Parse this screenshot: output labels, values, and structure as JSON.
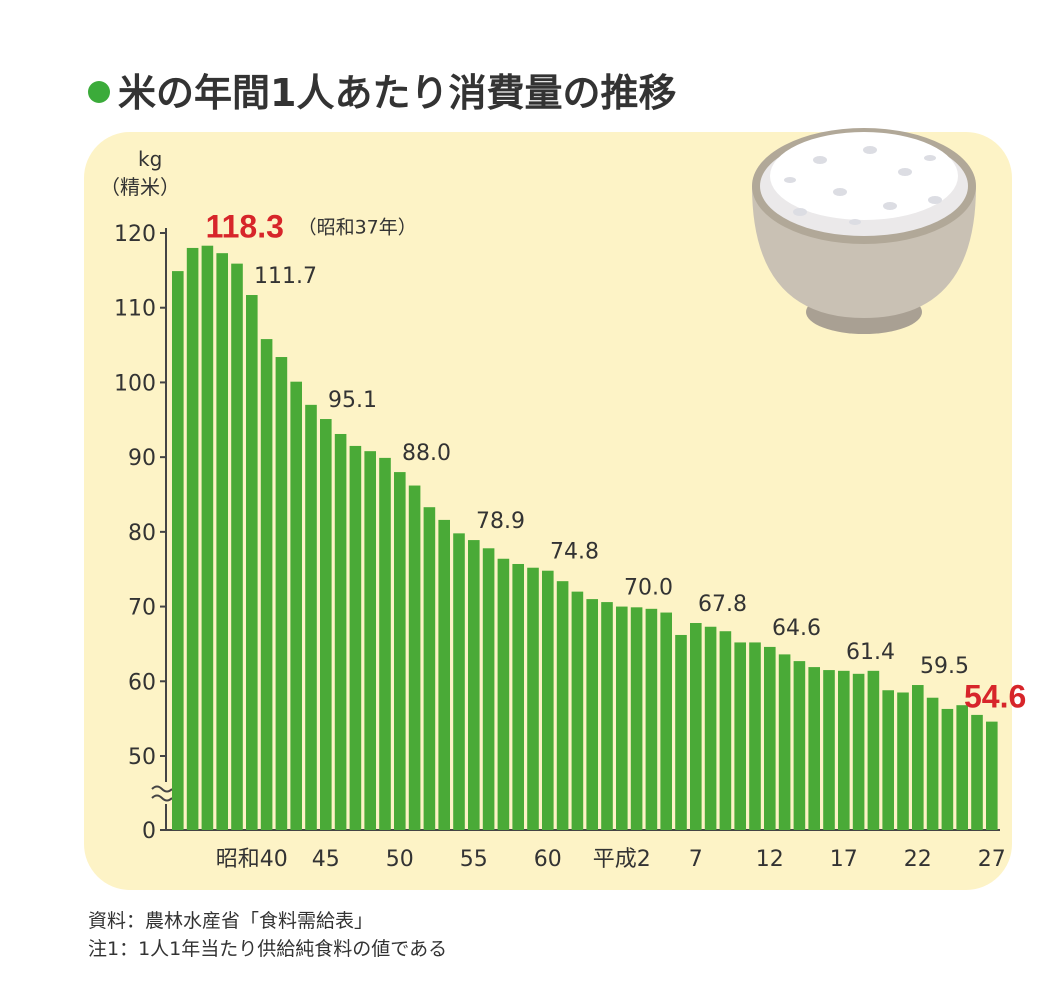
{
  "title": "米の年間1人あたり消費量の推移",
  "source_line1": "資料：農林水産省「食料需給表」",
  "source_line2": "注1：1人1年当たり供給純食料の値である",
  "colors": {
    "bar": "#4aaa37",
    "highlight": "#d7252a",
    "panel": "#fdf3c6",
    "title_dot": "#3bab3a"
  },
  "icons": [
    "rice-bowl-icon",
    "axis-break-icon"
  ],
  "chart_data": {
    "type": "bar",
    "title": "",
    "ylabel_unit": "kg",
    "ylabel_note": "（精米）",
    "ylim": [
      50,
      120
    ],
    "axis_break": true,
    "y_ticks": [
      0,
      50,
      60,
      70,
      80,
      90,
      100,
      110,
      120
    ],
    "x_ticks": [
      {
        "label": "昭和40",
        "year": 1965
      },
      {
        "label": "45",
        "year": 1970
      },
      {
        "label": "50",
        "year": 1975
      },
      {
        "label": "55",
        "year": 1980
      },
      {
        "label": "60",
        "year": 1985
      },
      {
        "label": "平成2",
        "year": 1990
      },
      {
        "label": "7",
        "year": 1995
      },
      {
        "label": "12",
        "year": 2000
      },
      {
        "label": "17",
        "year": 2005
      },
      {
        "label": "22",
        "year": 2010
      },
      {
        "label": "27",
        "year": 2015
      }
    ],
    "x": [
      1960,
      1961,
      1962,
      1963,
      1964,
      1965,
      1966,
      1967,
      1968,
      1969,
      1970,
      1971,
      1972,
      1973,
      1974,
      1975,
      1976,
      1977,
      1978,
      1979,
      1980,
      1981,
      1982,
      1983,
      1984,
      1985,
      1986,
      1987,
      1988,
      1989,
      1990,
      1991,
      1992,
      1993,
      1994,
      1995,
      1996,
      1997,
      1998,
      1999,
      2000,
      2001,
      2002,
      2003,
      2004,
      2005,
      2006,
      2007,
      2008,
      2009,
      2010,
      2011,
      2012,
      2013,
      2014,
      2015
    ],
    "values": [
      114.9,
      118.0,
      118.3,
      117.3,
      115.9,
      111.7,
      105.8,
      103.4,
      100.1,
      97.0,
      95.1,
      93.1,
      91.5,
      90.8,
      89.9,
      88.0,
      86.2,
      83.3,
      81.6,
      79.8,
      78.9,
      77.8,
      76.4,
      75.7,
      75.2,
      74.8,
      73.4,
      72.0,
      71.0,
      70.6,
      70.0,
      69.9,
      69.7,
      69.2,
      66.2,
      67.8,
      67.3,
      66.7,
      65.2,
      65.2,
      64.6,
      63.6,
      62.7,
      61.9,
      61.5,
      61.4,
      61.0,
      61.4,
      58.8,
      58.5,
      59.5,
      57.8,
      56.3,
      56.8,
      55.5,
      54.6
    ],
    "annotations": [
      {
        "year": 1962,
        "text": "118.3",
        "note": "（昭和37年）",
        "highlight": true
      },
      {
        "year": 1965,
        "text": "111.7"
      },
      {
        "year": 1970,
        "text": "95.1"
      },
      {
        "year": 1975,
        "text": "88.0"
      },
      {
        "year": 1980,
        "text": "78.9"
      },
      {
        "year": 1985,
        "text": "74.8"
      },
      {
        "year": 1990,
        "text": "70.0"
      },
      {
        "year": 1995,
        "text": "67.8"
      },
      {
        "year": 2000,
        "text": "64.6"
      },
      {
        "year": 2005,
        "text": "61.4"
      },
      {
        "year": 2010,
        "text": "59.5"
      },
      {
        "year": 2015,
        "text": "54.6",
        "highlight": true
      }
    ]
  }
}
